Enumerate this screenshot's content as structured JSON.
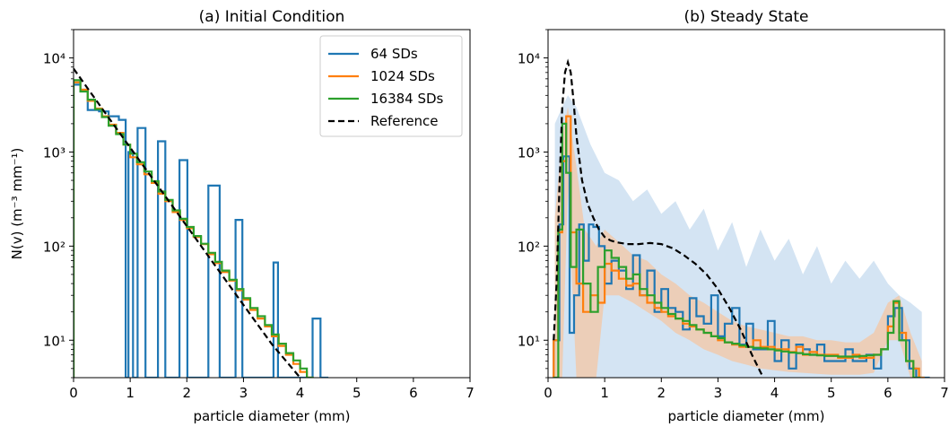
{
  "colors": {
    "sd64": "#1f77b4",
    "sd1024": "#ff7f0e",
    "sd16384": "#2ca02c",
    "reference": "#000000",
    "band64": "#c6dbef",
    "band1024": "#f4c7a4"
  },
  "legend": {
    "placement": "top-right of panel (a)",
    "entries": [
      "64 SDs",
      "1024 SDs",
      "16384 SDs",
      "Reference"
    ]
  },
  "chart_data": [
    {
      "type": "line",
      "title": "(a) Initial Condition",
      "xlabel": "particle diameter (mm)",
      "ylabel": "N(v) (m⁻³ mm⁻¹)",
      "xlim": [
        0,
        7
      ],
      "ylim": [
        4,
        20000
      ],
      "yscale": "log",
      "xticks": [
        "0",
        "1",
        "2",
        "3",
        "4",
        "5",
        "6",
        "7"
      ],
      "yticks": [
        {
          "value": 10,
          "label": "10¹"
        },
        {
          "value": 100,
          "label": "10²"
        },
        {
          "value": 1000,
          "label": "10³"
        },
        {
          "value": 10000,
          "label": "10⁴"
        }
      ],
      "grid": false,
      "series": [
        {
          "name": "64 SDs",
          "style": "step",
          "x": [
            0,
            0.12,
            0.25,
            0.45,
            0.62,
            0.8,
            0.92,
            0.97,
            1.05,
            1.13,
            1.27,
            1.4,
            1.49,
            1.62,
            1.75,
            1.78,
            1.87,
            2.01,
            2.08,
            2.3,
            2.38,
            2.58,
            2.73,
            2.86,
            2.98,
            3.2,
            3.53,
            3.61,
            3.8,
            3.98,
            4.22,
            4.36
          ],
          "values": [
            5200,
            4600,
            2800,
            2700,
            2400,
            2200,
            4,
            1000,
            4,
            1800,
            4,
            4,
            1300,
            4,
            4,
            4,
            820,
            4,
            4,
            4,
            440,
            4,
            4,
            190,
            4,
            4,
            67,
            4,
            4,
            4,
            17,
            4
          ]
        },
        {
          "name": "1024 SDs",
          "style": "step",
          "x": [
            0,
            0.12,
            0.25,
            0.38,
            0.5,
            0.62,
            0.75,
            0.88,
            1.0,
            1.12,
            1.25,
            1.38,
            1.5,
            1.62,
            1.75,
            1.88,
            2.0,
            2.12,
            2.25,
            2.38,
            2.5,
            2.62,
            2.75,
            2.88,
            3.0,
            3.12,
            3.25,
            3.38,
            3.5,
            3.62,
            3.75,
            3.88,
            4.0,
            4.12
          ],
          "values": [
            5500,
            4600,
            3500,
            2900,
            2400,
            1950,
            1600,
            1200,
            880,
            740,
            580,
            470,
            360,
            300,
            230,
            190,
            155,
            125,
            105,
            82,
            66,
            53,
            43,
            34,
            27,
            21,
            17,
            14,
            11,
            8.7,
            7,
            5.6,
            4.6,
            4
          ]
        },
        {
          "name": "16384 SDs",
          "style": "step",
          "x": [
            0,
            0.12,
            0.25,
            0.38,
            0.5,
            0.62,
            0.75,
            0.88,
            1.0,
            1.12,
            1.25,
            1.38,
            1.5,
            1.62,
            1.75,
            1.88,
            2.0,
            2.12,
            2.25,
            2.38,
            2.5,
            2.62,
            2.75,
            2.88,
            3.0,
            3.12,
            3.25,
            3.38,
            3.5,
            3.62,
            3.75,
            3.88,
            4.0,
            4.12
          ],
          "values": [
            5800,
            4400,
            3600,
            2850,
            2350,
            1900,
            1550,
            1200,
            960,
            780,
            620,
            490,
            380,
            310,
            240,
            195,
            160,
            128,
            106,
            85,
            68,
            55,
            44,
            35,
            28,
            22,
            18,
            14.5,
            11.5,
            9.2,
            7.3,
            6.1,
            5,
            4
          ]
        },
        {
          "name": "Reference",
          "style": "dashed",
          "x": [
            0,
            0.5,
            1,
            1.5,
            2,
            2.5,
            3,
            3.5,
            4
          ],
          "values": [
            7700,
            2920,
            1115,
            427,
            163,
            62,
            23.7,
            9.1,
            3.47
          ]
        }
      ]
    },
    {
      "type": "line",
      "title": "(b) Steady State",
      "xlabel": "particle diameter (mm)",
      "ylabel": "",
      "xlim": [
        0,
        7
      ],
      "ylim": [
        4,
        20000
      ],
      "yscale": "log",
      "xticks": [
        "0",
        "1",
        "2",
        "3",
        "4",
        "5",
        "6",
        "7"
      ],
      "yticks": [
        {
          "value": 10,
          "label": "10¹"
        },
        {
          "value": 100,
          "label": "10²"
        },
        {
          "value": 1000,
          "label": "10³"
        },
        {
          "value": 10000,
          "label": "10⁴"
        }
      ],
      "grid": false,
      "bands": [
        {
          "series": "64 SDs",
          "x": [
            0.12,
            0.25,
            0.35,
            0.5,
            0.75,
            1.0,
            1.25,
            1.5,
            1.75,
            2.0,
            2.25,
            2.5,
            2.75,
            3.0,
            3.25,
            3.5,
            3.75,
            4.0,
            4.25,
            4.5,
            4.75,
            5.0,
            5.25,
            5.5,
            5.75,
            6.0,
            6.2,
            6.4,
            6.6
          ],
          "upper": [
            2000,
            3000,
            4000,
            3000,
            1200,
            600,
            500,
            300,
            400,
            220,
            300,
            150,
            250,
            90,
            180,
            60,
            150,
            70,
            120,
            50,
            100,
            40,
            70,
            45,
            70,
            40,
            30,
            25,
            20
          ],
          "lower": [
            4,
            4,
            4,
            4,
            4,
            4,
            4,
            4,
            4,
            4,
            4,
            4,
            4,
            4,
            4,
            4,
            4,
            4,
            4,
            4,
            4,
            4,
            4,
            4,
            4,
            4,
            4,
            4,
            4
          ]
        },
        {
          "series": "1024 SDs",
          "x": [
            0.12,
            0.25,
            0.35,
            0.5,
            0.65,
            0.85,
            1.0,
            1.25,
            1.5,
            1.75,
            2.0,
            2.25,
            2.5,
            2.75,
            3.0,
            3.25,
            3.5,
            3.75,
            4.0,
            4.25,
            4.5,
            4.75,
            5.0,
            5.25,
            5.5,
            5.75,
            6.0,
            6.2,
            6.4,
            6.6
          ],
          "upper": [
            200,
            1500,
            3000,
            700,
            150,
            100,
            150,
            110,
            80,
            70,
            50,
            40,
            30,
            25,
            20,
            16,
            14,
            13,
            12,
            11,
            11,
            10,
            10,
            9.5,
            9.5,
            12,
            25,
            30,
            12,
            6
          ],
          "lower": [
            4,
            4,
            400,
            4,
            4,
            4,
            30,
            30,
            25,
            20,
            16,
            12,
            10,
            8,
            7,
            6,
            5.5,
            5,
            4.8,
            4.6,
            4.5,
            4.4,
            4.3,
            4.3,
            4.3,
            4.5,
            10,
            10,
            4,
            4
          ]
        }
      ],
      "series": [
        {
          "name": "64 SDs",
          "style": "step",
          "x": [
            0.1,
            0.2,
            0.27,
            0.38,
            0.46,
            0.55,
            0.63,
            0.72,
            0.8,
            0.9,
            1.0,
            1.12,
            1.25,
            1.38,
            1.5,
            1.62,
            1.75,
            1.88,
            2.0,
            2.12,
            2.25,
            2.38,
            2.5,
            2.62,
            2.75,
            2.88,
            3.0,
            3.12,
            3.25,
            3.38,
            3.5,
            3.62,
            3.75,
            3.88,
            4.0,
            4.12,
            4.25,
            4.38,
            4.5,
            4.62,
            4.75,
            4.88,
            5.0,
            5.12,
            5.25,
            5.38,
            5.5,
            5.62,
            5.75,
            5.88,
            6.0,
            6.12,
            6.25,
            6.38,
            6.5,
            6.62
          ],
          "values": [
            10,
            170,
            900,
            12,
            30,
            170,
            70,
            170,
            160,
            100,
            40,
            70,
            55,
            35,
            80,
            30,
            55,
            20,
            35,
            22,
            20,
            13,
            28,
            18,
            15,
            30,
            11,
            15,
            22,
            9,
            15,
            8,
            8,
            16,
            6,
            10,
            5,
            9,
            8,
            7,
            9,
            6,
            6,
            6,
            8,
            6,
            6,
            7,
            5,
            8,
            18,
            22,
            10,
            5,
            4,
            4
          ]
        },
        {
          "name": "1024 SDs",
          "style": "step",
          "x": [
            0.1,
            0.18,
            0.25,
            0.32,
            0.4,
            0.5,
            0.62,
            0.75,
            0.88,
            1.0,
            1.12,
            1.25,
            1.38,
            1.5,
            1.62,
            1.75,
            1.88,
            2.0,
            2.12,
            2.25,
            2.38,
            2.5,
            2.62,
            2.75,
            2.88,
            3.0,
            3.12,
            3.25,
            3.38,
            3.5,
            3.62,
            3.75,
            3.88,
            4.0,
            4.12,
            4.25,
            4.38,
            4.5,
            4.62,
            4.75,
            4.88,
            5.0,
            5.12,
            5.25,
            5.38,
            5.5,
            5.62,
            5.75,
            5.88,
            6.0,
            6.1,
            6.2,
            6.32,
            6.45,
            6.55
          ],
          "values": [
            10,
            140,
            800,
            2400,
            140,
            40,
            20,
            30,
            25,
            65,
            55,
            45,
            38,
            40,
            30,
            25,
            22,
            20,
            18,
            17,
            15,
            14,
            13,
            12,
            11,
            10,
            9.5,
            9,
            8.5,
            8.5,
            10,
            8.5,
            8.5,
            8,
            8,
            7.5,
            8.5,
            7,
            7.5,
            7,
            7,
            7,
            6.5,
            6.5,
            7,
            6.5,
            6.5,
            7,
            8,
            14,
            25,
            12,
            6,
            5,
            4
          ]
        },
        {
          "name": "16384 SDs",
          "style": "step",
          "x": [
            0.1,
            0.18,
            0.25,
            0.32,
            0.4,
            0.5,
            0.62,
            0.75,
            0.88,
            1.0,
            1.12,
            1.25,
            1.38,
            1.5,
            1.62,
            1.75,
            1.88,
            2.0,
            2.12,
            2.25,
            2.38,
            2.5,
            2.62,
            2.75,
            2.88,
            3.0,
            3.12,
            3.25,
            3.38,
            3.5,
            3.62,
            3.75,
            3.88,
            4.0,
            4.12,
            4.25,
            4.38,
            4.5,
            4.62,
            4.75,
            4.88,
            5.0,
            5.12,
            5.25,
            5.38,
            5.5,
            5.62,
            5.75,
            5.88,
            6.0,
            6.1,
            6.2,
            6.32,
            6.45
          ],
          "values": [
            4,
            150,
            2000,
            600,
            60,
            150,
            40,
            20,
            60,
            90,
            75,
            60,
            45,
            50,
            35,
            30,
            25,
            22,
            19,
            17,
            16,
            14.5,
            13,
            12,
            11,
            10.5,
            9.5,
            9.2,
            8.8,
            8.5,
            8.3,
            8.2,
            8,
            7.8,
            7.6,
            7.4,
            7.3,
            7.1,
            7,
            6.9,
            6.8,
            6.8,
            6.7,
            6.7,
            6.7,
            6.8,
            6.9,
            7,
            8,
            12,
            26,
            10,
            6,
            4
          ]
        },
        {
          "name": "Reference",
          "style": "dashed",
          "x": [
            0.1,
            0.15,
            0.2,
            0.25,
            0.3,
            0.35,
            0.4,
            0.45,
            0.5,
            0.6,
            0.7,
            0.8,
            0.9,
            1.0,
            1.1,
            1.2,
            1.4,
            1.6,
            1.8,
            2.0,
            2.2,
            2.4,
            2.6,
            2.8,
            3.0,
            3.2,
            3.4,
            3.6,
            3.8
          ],
          "values": [
            10,
            40,
            400,
            3000,
            7000,
            9000,
            7000,
            3500,
            1500,
            500,
            280,
            200,
            150,
            125,
            115,
            110,
            105,
            105,
            108,
            105,
            95,
            80,
            65,
            50,
            35,
            22,
            13,
            7,
            4
          ]
        }
      ]
    }
  ]
}
